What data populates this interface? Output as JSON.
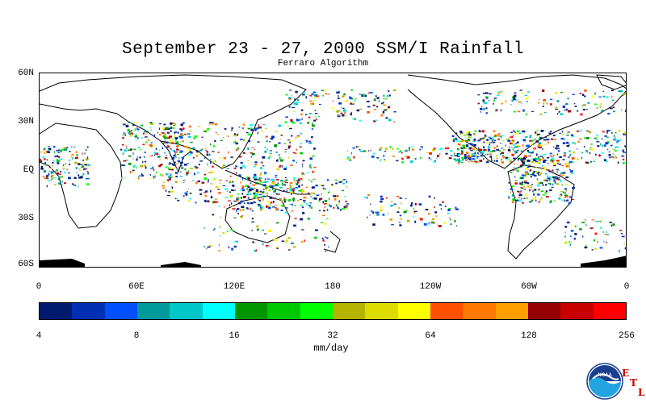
{
  "header": {
    "title": "September 23 - 27, 2000 SSM/I Rainfall",
    "subtitle": "Ferraro Algorithm"
  },
  "map": {
    "lat_labels": [
      "60N",
      "30N",
      "EQ",
      "30S",
      "60S"
    ],
    "lon_labels": [
      "0",
      "60E",
      "120E",
      "180",
      "120W",
      "60W",
      "0"
    ],
    "land_color": "#ffffff",
    "coast_color": "#000000"
  },
  "colorbar": {
    "colors": [
      "#001a6e",
      "#002fb4",
      "#0050ff",
      "#009a9a",
      "#00c8c8",
      "#00ffff",
      "#009600",
      "#00c800",
      "#00ff00",
      "#b4b400",
      "#dcdc00",
      "#ffff00",
      "#ff5000",
      "#ff7800",
      "#ffa000",
      "#960000",
      "#c80000",
      "#ff0000"
    ],
    "tick_labels": [
      "4",
      "8",
      "16",
      "32",
      "64",
      "128",
      "256"
    ],
    "units": "mm/day"
  },
  "logo": {
    "name": "NOAA",
    "etl_letters": [
      "E",
      "T",
      "L"
    ]
  }
}
